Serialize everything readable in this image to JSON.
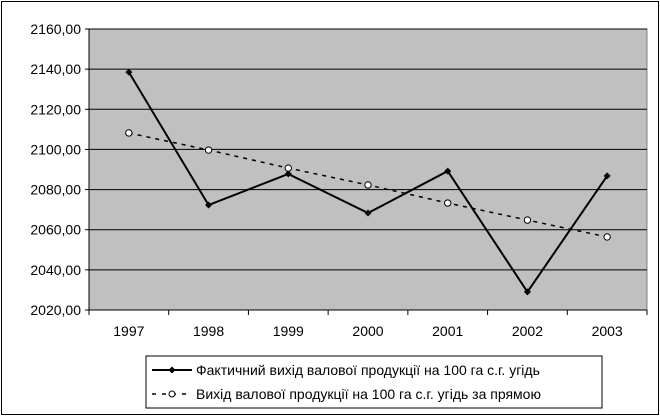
{
  "chart_data": {
    "type": "line",
    "categories": [
      "1997",
      "1998",
      "1999",
      "2000",
      "2001",
      "2002",
      "2003"
    ],
    "series": [
      {
        "name": "Фактичний вихід валової продукції на 100 га с.г. угідь",
        "values": [
          2138.5,
          2072.3,
          2087.8,
          2068.3,
          2089.2,
          2029.0,
          2086.8
        ],
        "style": "solid",
        "marker": "filled-diamond",
        "color": "#000000"
      },
      {
        "name": "Вихід валової продукції на 100 га с.г. угідь за прямою",
        "values": [
          2108.2,
          2099.7,
          2090.7,
          2082.3,
          2073.3,
          2064.8,
          2056.4
        ],
        "style": "dashed",
        "marker": "open-circle",
        "color": "#000000"
      }
    ],
    "yticks": [
      "2020,00",
      "2040,00",
      "2060,00",
      "2080,00",
      "2100,00",
      "2120,00",
      "2140,00",
      "2160,00"
    ],
    "ylim": [
      2020,
      2160
    ],
    "title": "",
    "xlabel": "",
    "ylabel": "",
    "grid": true,
    "legend_position": "bottom",
    "plot_background": "#C0C0C0"
  }
}
